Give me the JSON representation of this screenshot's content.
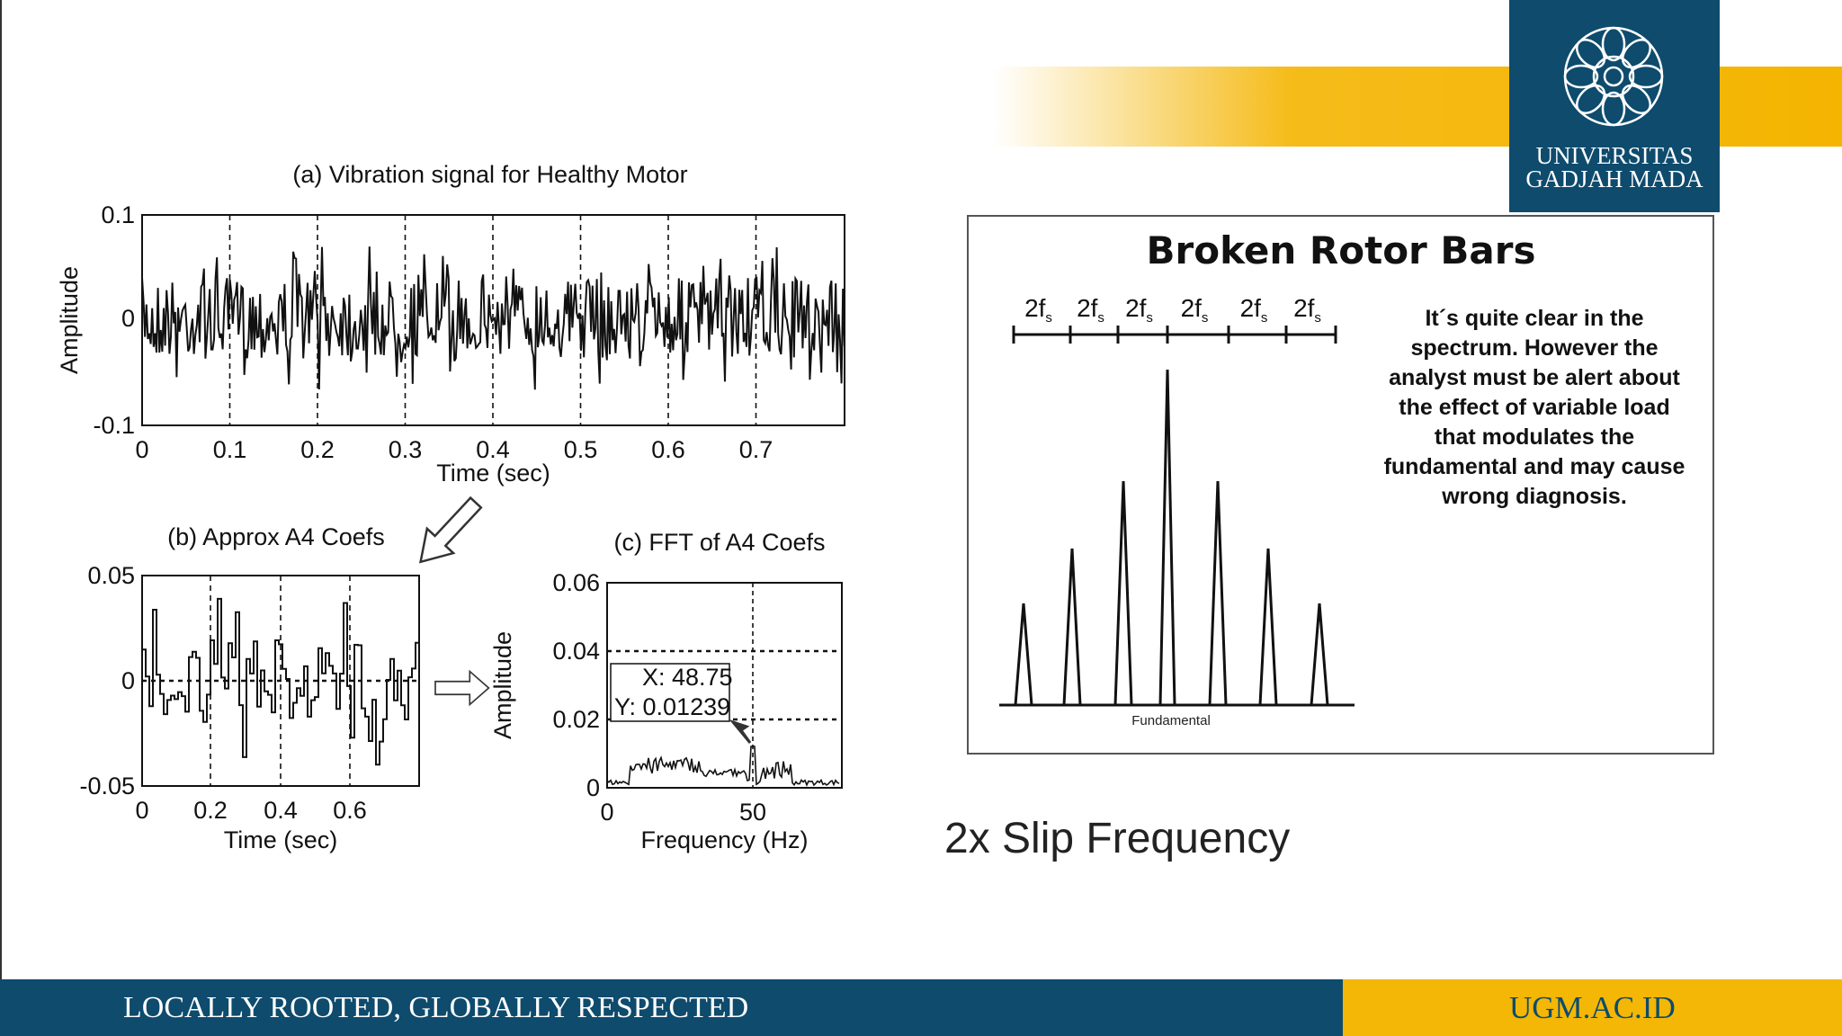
{
  "figure_a": {
    "title": "(a) Vibration signal for Healthy Motor",
    "y_label": "Amplitude",
    "x_label": "Time (sec)",
    "y_ticks": [
      "0.1",
      "0",
      "-0.1"
    ],
    "x_ticks": [
      "0",
      "0.1",
      "0.2",
      "0.3",
      "0.4",
      "0.5",
      "0.6",
      "0.7"
    ]
  },
  "figure_b": {
    "title": "(b) Approx A4 Coefs",
    "x_label": "Time (sec)",
    "y_ticks": [
      "0.05",
      "0",
      "-0.05"
    ],
    "x_ticks": [
      "0",
      "0.2",
      "0.4",
      "0.6"
    ]
  },
  "figure_c": {
    "title": "(c) FFT of A4 Coefs",
    "y_label": "Amplitude",
    "x_label": "Frequency (Hz)",
    "y_ticks": [
      "0.06",
      "0.04",
      "0.02",
      "0"
    ],
    "x_ticks": [
      "0",
      "50"
    ],
    "datatip": [
      "X: 48.75",
      "Y: 0.01239"
    ]
  },
  "caption": "2x Slip Frequency",
  "panel": {
    "title": "Broken Rotor Bars",
    "scale_labels": [
      {
        "main": "2f",
        "sub": "s"
      },
      {
        "main": "2f",
        "sub": "s"
      },
      {
        "main": "2f",
        "sub": "s"
      },
      {
        "main": "2f",
        "sub": "s"
      },
      {
        "main": "2f",
        "sub": "s"
      },
      {
        "main": "2f",
        "sub": "s"
      }
    ],
    "baseline_label": "Fundamental",
    "text": [
      "It´s quite clear in the",
      "spectrum. However  the",
      "analyst must be alert about",
      "the effect of  variable load",
      "that modulates the",
      "fundamental and may cause",
      "wrong diagnosis."
    ]
  },
  "logo": [
    "UNIVERSITAS",
    "GADJAH MADA"
  ],
  "footer": {
    "motto": "LOCALLY ROOTED, GLOBALLY RESPECTED",
    "url": "UGM.AC.ID"
  }
}
